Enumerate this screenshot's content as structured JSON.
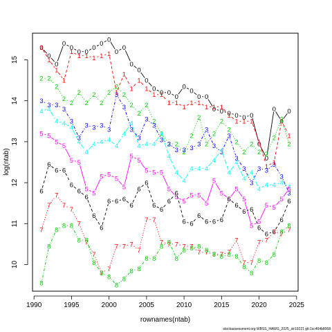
{
  "chart_data": {
    "type": "line",
    "xlabel": "rownames(ntab)",
    "ylabel": "log(ntab)",
    "footer": "stockassessment.org WBSS_HAWG_2025_str19221 git:1cc464b8068",
    "xlim": [
      1989.8,
      2025.2
    ],
    "ylim": [
      9.35,
      15.65
    ],
    "x_ticks": [
      1990,
      1995,
      2000,
      2005,
      2010,
      2015,
      2020,
      2025
    ],
    "y_ticks": [
      10,
      11,
      12,
      13,
      14,
      15
    ],
    "x": [
      1991,
      1992,
      1993,
      1994,
      1995,
      1996,
      1997,
      1998,
      1999,
      2000,
      2001,
      2002,
      2003,
      2004,
      2005,
      2006,
      2007,
      2008,
      2009,
      2010,
      2011,
      2012,
      2013,
      2014,
      2015,
      2016,
      2017,
      2018,
      2019,
      2020,
      2021,
      2022,
      2023,
      2024
    ],
    "series": [
      {
        "name": "0",
        "color": "#000000",
        "line_style": "solid",
        "values": [
          15.3,
          15.1,
          14.9,
          15.4,
          15.3,
          15.2,
          15.2,
          15.3,
          15.4,
          15.5,
          15.2,
          15.3,
          14.9,
          14.75,
          14.5,
          14.3,
          14.2,
          14.2,
          14.1,
          14.35,
          14.25,
          14.1,
          14.1,
          13.8,
          13.75,
          13.7,
          13.65,
          13.6,
          13.65,
          12.95,
          12.6,
          13.8,
          13.5,
          13.75
        ]
      },
      {
        "name": "1",
        "color": "#ff0000",
        "line_style": "dashed",
        "values": [
          15.3,
          15.0,
          14.75,
          14.5,
          15.2,
          15.1,
          15.1,
          15.05,
          15.1,
          15.15,
          14.2,
          14.65,
          14.3,
          14.5,
          14.3,
          14.15,
          14.15,
          13.95,
          13.95,
          13.85,
          13.95,
          13.95,
          13.85,
          13.85,
          13.85,
          13.65,
          13.5,
          13.5,
          13.5,
          13.0,
          12.4,
          12.5,
          13.5,
          13.15
        ]
      },
      {
        "name": "2",
        "color": "#00cd00",
        "line_style": "dotted",
        "values": [
          14.55,
          14.55,
          14.35,
          14.05,
          13.95,
          14.2,
          13.95,
          14.15,
          13.95,
          14.2,
          14.35,
          14.15,
          13.9,
          13.7,
          13.9,
          13.5,
          13.2,
          12.95,
          12.95,
          12.75,
          13.15,
          13.6,
          12.95,
          13.2,
          13.5,
          13.3,
          13.0,
          12.75,
          12.95,
          12.75,
          12.7,
          13.1,
          13.55,
          12.95
        ]
      },
      {
        "name": "3",
        "color": "#0000ff",
        "line_style": "dashdot",
        "values": [
          14.0,
          13.9,
          13.9,
          13.8,
          13.5,
          13.1,
          13.4,
          13.35,
          13.4,
          13.3,
          14.15,
          13.85,
          13.3,
          13.1,
          13.55,
          13.4,
          13.05,
          12.95,
          12.8,
          12.8,
          12.85,
          12.95,
          13.3,
          12.9,
          12.75,
          13.15,
          12.6,
          12.35,
          12.0,
          12.35,
          12.3,
          12.45,
          12.15,
          11.75
        ]
      },
      {
        "name": "4",
        "color": "#00ffff",
        "line_style": "longdash",
        "values": [
          13.75,
          13.8,
          13.5,
          13.45,
          13.35,
          13.0,
          12.75,
          12.95,
          13.0,
          13.05,
          12.9,
          13.2,
          13.45,
          12.9,
          12.95,
          12.95,
          13.2,
          12.65,
          12.25,
          12.05,
          12.35,
          12.35,
          12.35,
          12.55,
          12.8,
          12.25,
          12.5,
          12.1,
          12.25,
          11.85,
          11.95,
          11.95,
          12.0,
          11.9
        ]
      },
      {
        "name": "5",
        "color": "#ff00ff",
        "line_style": "solid",
        "values": [
          13.2,
          13.15,
          13.0,
          12.9,
          12.55,
          12.5,
          11.85,
          11.75,
          12.15,
          12.2,
          12.1,
          11.9,
          12.65,
          12.55,
          12.3,
          12.25,
          12.25,
          11.85,
          11.65,
          11.55,
          11.7,
          11.7,
          11.5,
          12.05,
          11.75,
          11.6,
          11.85,
          11.6,
          10.95,
          11.05,
          11.45,
          11.4,
          11.6,
          11.85
        ]
      },
      {
        "name": "6",
        "color": "#000000",
        "line_style": "dashed",
        "values": [
          11.8,
          12.45,
          12.3,
          12.3,
          11.95,
          11.8,
          11.65,
          11.2,
          10.9,
          11.55,
          11.55,
          11.6,
          11.45,
          11.85,
          12.0,
          11.45,
          11.35,
          11.55,
          11.75,
          11.05,
          11.0,
          11.2,
          11.05,
          11.05,
          11.1,
          11.6,
          11.45,
          11.3,
          11.35,
          10.9,
          10.75,
          10.8,
          11.1,
          11.55
        ]
      },
      {
        "name": "7",
        "color": "#ff0000",
        "line_style": "dotted",
        "values": [
          10.85,
          11.45,
          11.7,
          11.45,
          11.35,
          11.0,
          10.55,
          10.25,
          9.8,
          9.9,
          10.45,
          10.45,
          10.5,
          10.35,
          11.1,
          11.1,
          10.55,
          10.5,
          10.5,
          10.45,
          10.45,
          10.3,
          10.3,
          10.25,
          10.25,
          10.3,
          10.6,
          10.05,
          10.05,
          10.55,
          10.6,
          10.8,
          10.75,
          10.85
        ]
      },
      {
        "name": "8",
        "color": "#00cd00",
        "line_style": "dashdot",
        "values": [
          9.55,
          10.45,
          10.85,
          10.95,
          10.95,
          10.6,
          10.6,
          10.05,
          9.8,
          9.7,
          9.5,
          9.65,
          9.85,
          9.9,
          10.15,
          10.15,
          10.45,
          10.55,
          10.15,
          10.35,
          10.4,
          10.45,
          10.35,
          10.25,
          10.2,
          10.25,
          10.2,
          9.95,
          9.8,
          10.1,
          10.05,
          10.25,
          10.8,
          10.95
        ]
      }
    ],
    "grid": false,
    "legend": "none"
  }
}
